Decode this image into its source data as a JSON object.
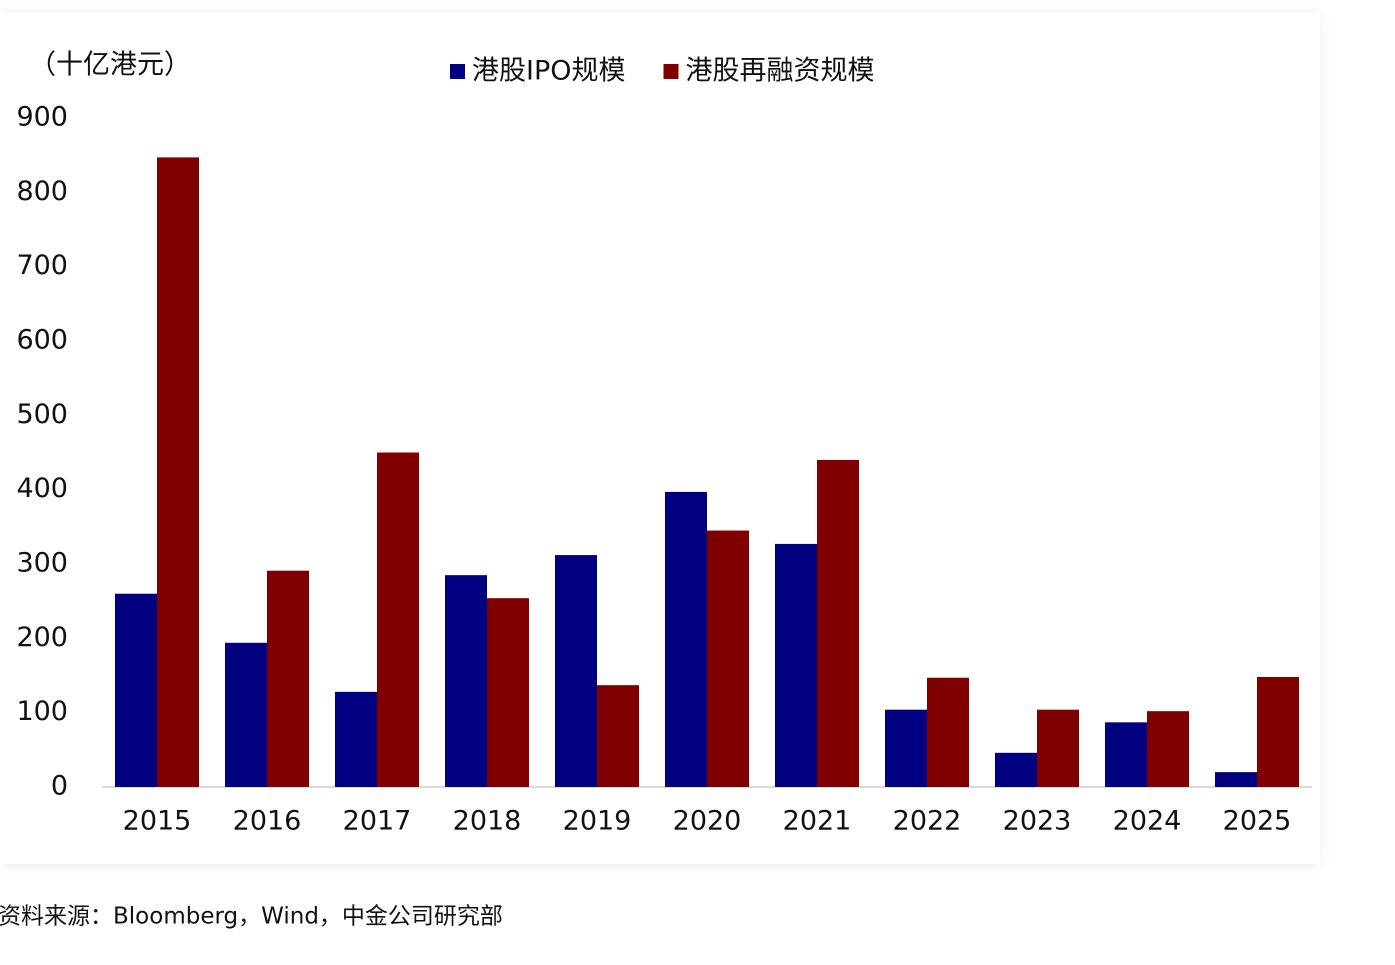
{
  "chart_data": {
    "type": "bar",
    "y_label": "（十亿港元）",
    "categories": [
      "2015",
      "2016",
      "2017",
      "2018",
      "2019",
      "2020",
      "2021",
      "2022",
      "2023",
      "2024",
      "2025"
    ],
    "series": [
      {
        "name": "港股IPO规模",
        "color": "#000080",
        "values": [
          260,
          194,
          128,
          285,
          312,
          397,
          327,
          104,
          46,
          87,
          20
        ]
      },
      {
        "name": "港股再融资规模",
        "color": "#800000",
        "values": [
          847,
          291,
          450,
          254,
          137,
          345,
          440,
          147,
          104,
          102,
          148
        ]
      }
    ],
    "ylim": [
      0,
      900
    ],
    "yticks": [
      0,
      100,
      200,
      300,
      400,
      500,
      600,
      700,
      800,
      900
    ],
    "grid": false,
    "source": "资料来源：Bloomberg，Wind，中金公司研究部"
  }
}
